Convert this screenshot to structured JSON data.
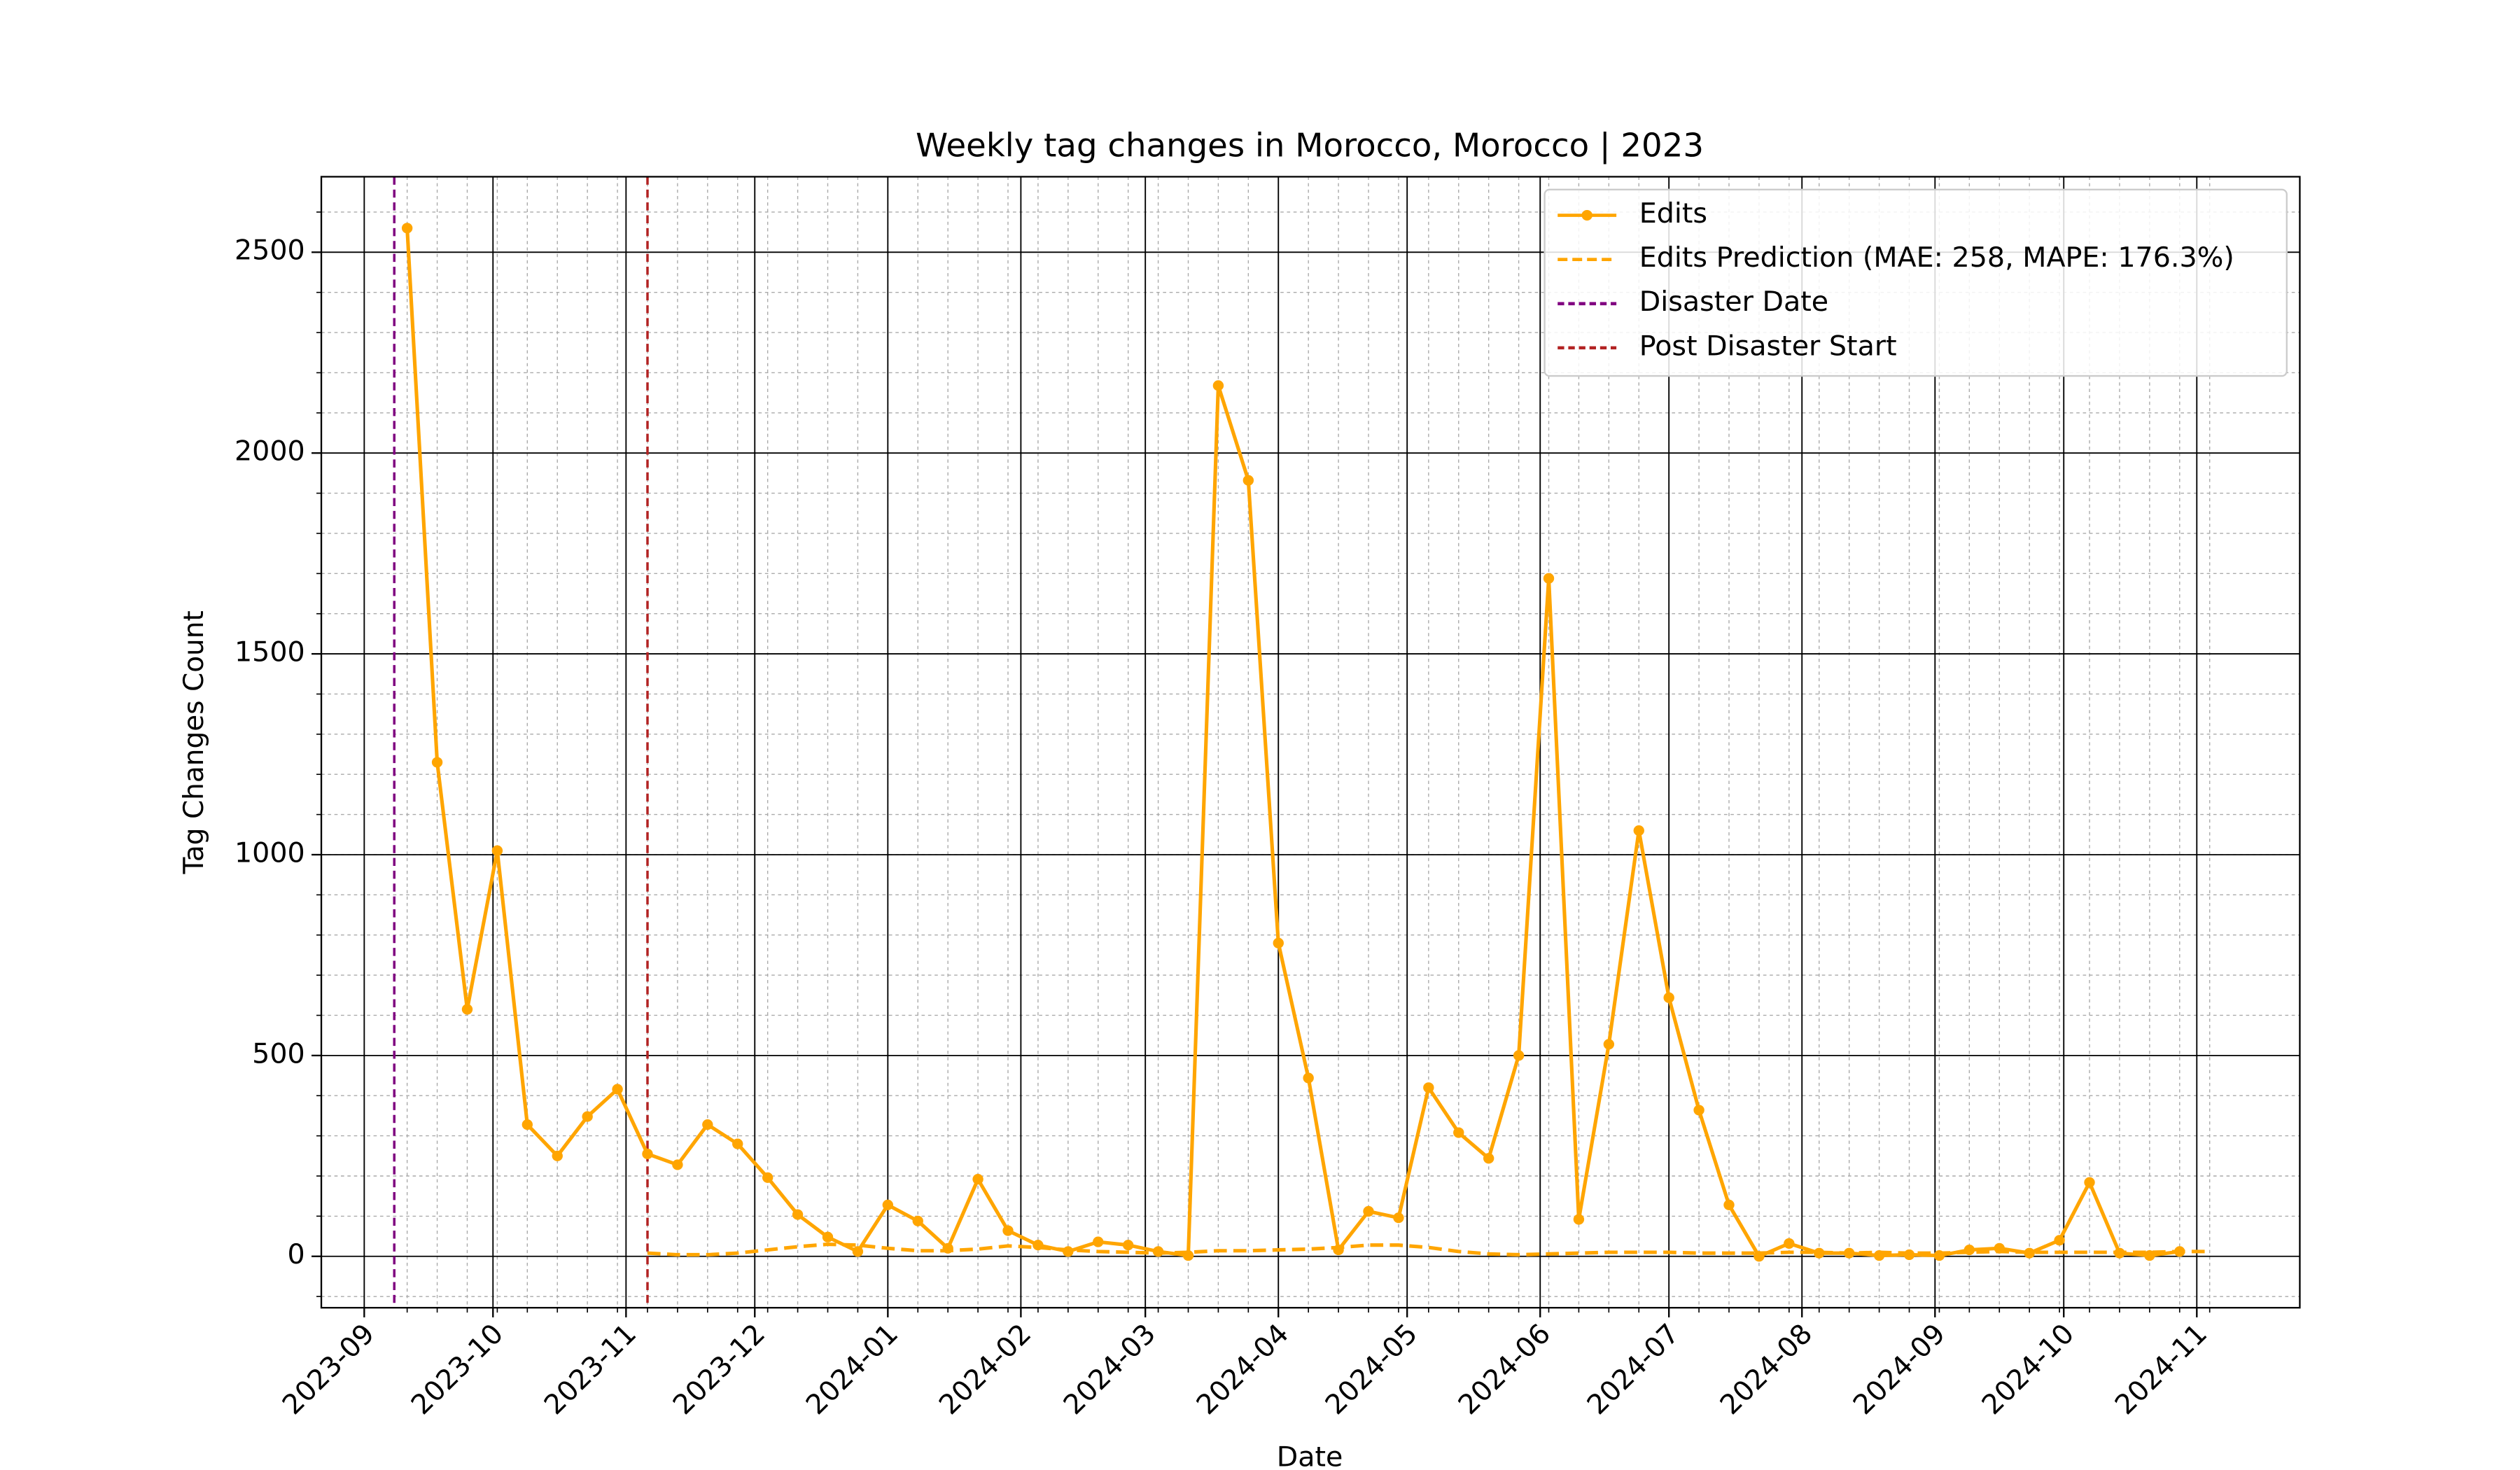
{
  "chart_data": {
    "type": "line",
    "title": "Weekly tag changes in Morocco, Morocco | 2023",
    "xlabel": "Date",
    "ylabel": "Tag Changes Count",
    "x": [
      "2023-09-11",
      "2023-09-18",
      "2023-09-25",
      "2023-10-02",
      "2023-10-09",
      "2023-10-16",
      "2023-10-23",
      "2023-10-30",
      "2023-11-06",
      "2023-11-13",
      "2023-11-20",
      "2023-11-27",
      "2023-12-04",
      "2023-12-11",
      "2023-12-18",
      "2023-12-25",
      "2024-01-01",
      "2024-01-08",
      "2024-01-15",
      "2024-01-22",
      "2024-01-29",
      "2024-02-05",
      "2024-02-12",
      "2024-02-19",
      "2024-02-26",
      "2024-03-04",
      "2024-03-11",
      "2024-03-18",
      "2024-03-25",
      "2024-04-01",
      "2024-04-08",
      "2024-04-15",
      "2024-04-22",
      "2024-04-29",
      "2024-05-06",
      "2024-05-13",
      "2024-05-20",
      "2024-05-27",
      "2024-06-03",
      "2024-06-10",
      "2024-06-17",
      "2024-06-24",
      "2024-07-01",
      "2024-07-08",
      "2024-07-15",
      "2024-07-22",
      "2024-07-29",
      "2024-08-05",
      "2024-08-12",
      "2024-08-19",
      "2024-08-26",
      "2024-09-02",
      "2024-09-09",
      "2024-09-16",
      "2024-09-23",
      "2024-09-30",
      "2024-10-07",
      "2024-10-14",
      "2024-10-21",
      "2024-10-28",
      "2024-11-04"
    ],
    "series": [
      {
        "name": "Edits",
        "color": "#ffa500",
        "style": "solid",
        "marker": true,
        "values": [
          2560,
          1230,
          615,
          1010,
          328,
          250,
          348,
          416,
          255,
          228,
          328,
          280,
          196,
          104,
          48,
          12,
          128,
          88,
          20,
          192,
          64,
          28,
          12,
          36,
          28,
          12,
          2,
          2168,
          1932,
          780,
          444,
          16,
          112,
          96,
          420,
          308,
          244,
          500,
          1688,
          92,
          528,
          1060,
          644,
          364,
          128,
          0,
          32,
          8,
          8,
          2,
          4,
          2,
          16,
          20,
          8,
          40,
          184,
          8,
          2,
          12,
          null
        ]
      },
      {
        "name": "Edits Prediction (MAE: 258, MAPE: 176.3%)",
        "color": "#ffa500",
        "style": "dashed",
        "marker": false,
        "values": [
          null,
          null,
          null,
          null,
          null,
          null,
          null,
          null,
          8,
          4,
          4,
          8,
          16,
          24,
          30,
          28,
          20,
          14,
          14,
          18,
          26,
          22,
          16,
          12,
          10,
          8,
          10,
          14,
          14,
          16,
          18,
          22,
          28,
          28,
          22,
          12,
          6,
          4,
          6,
          8,
          10,
          10,
          10,
          8,
          8,
          8,
          10,
          10,
          8,
          10,
          8,
          8,
          10,
          12,
          10,
          10,
          10,
          10,
          10,
          12,
          12
        ]
      }
    ],
    "vlines": [
      {
        "name": "Disaster Date",
        "x": "2023-09-08",
        "color": "#800080"
      },
      {
        "name": "Post Disaster Start",
        "x": "2023-11-06",
        "color": "#b22222"
      }
    ],
    "xlim": [
      "2023-08-22",
      "2024-11-25"
    ],
    "xticks": [
      {
        "value": "2023-09-01",
        "label": "2023-09"
      },
      {
        "value": "2023-10-01",
        "label": "2023-10"
      },
      {
        "value": "2023-11-01",
        "label": "2023-11"
      },
      {
        "value": "2023-12-01",
        "label": "2023-12"
      },
      {
        "value": "2024-01-01",
        "label": "2024-01"
      },
      {
        "value": "2024-02-01",
        "label": "2024-02"
      },
      {
        "value": "2024-03-01",
        "label": "2024-03"
      },
      {
        "value": "2024-04-01",
        "label": "2024-04"
      },
      {
        "value": "2024-05-01",
        "label": "2024-05"
      },
      {
        "value": "2024-06-01",
        "label": "2024-06"
      },
      {
        "value": "2024-07-01",
        "label": "2024-07"
      },
      {
        "value": "2024-08-01",
        "label": "2024-08"
      },
      {
        "value": "2024-09-01",
        "label": "2024-09"
      },
      {
        "value": "2024-10-01",
        "label": "2024-10"
      },
      {
        "value": "2024-11-01",
        "label": "2024-11"
      }
    ],
    "ylim": [
      -128,
      2688
    ],
    "yticks": [
      0,
      500,
      1000,
      1500,
      2000,
      2500
    ],
    "grid": true,
    "minor_grid": true,
    "legend": "upper right"
  }
}
